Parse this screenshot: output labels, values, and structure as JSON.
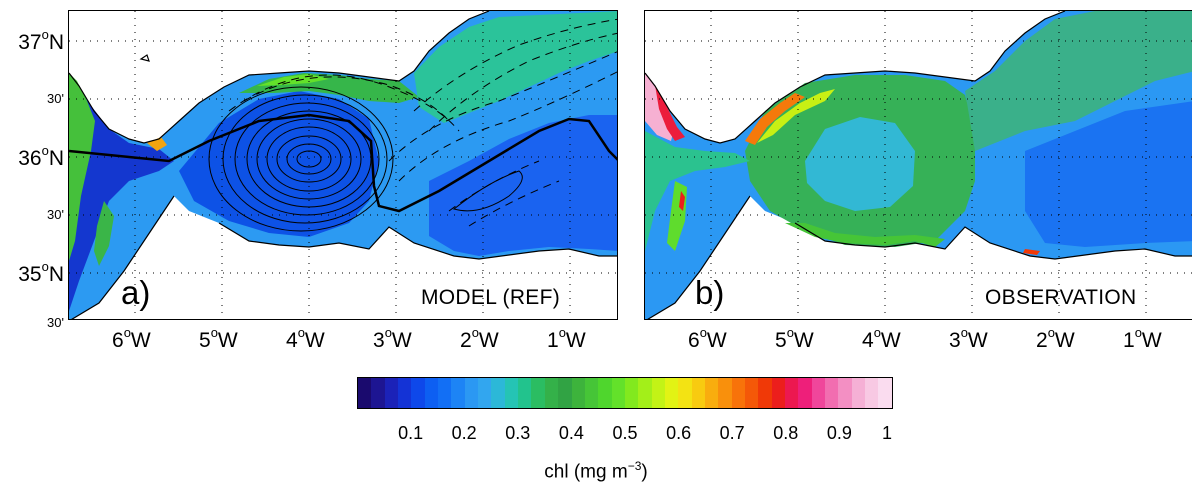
{
  "panels": {
    "a": {
      "letter": "a)",
      "title": "MODEL (REF)"
    },
    "b": {
      "letter": "b)",
      "title": "OBSERVATION"
    }
  },
  "lon_labels": [
    {
      "deg": "6",
      "suffix": "W"
    },
    {
      "deg": "5",
      "suffix": "W"
    },
    {
      "deg": "4",
      "suffix": "W"
    },
    {
      "deg": "3",
      "suffix": "W"
    },
    {
      "deg": "2",
      "suffix": "W"
    },
    {
      "deg": "1",
      "suffix": "W"
    }
  ],
  "lat_labels": [
    {
      "text": "37",
      "sup": "o",
      "suffix": "N",
      "major": true
    },
    {
      "text": "30'",
      "major": false
    },
    {
      "text": "36",
      "sup": "o",
      "suffix": "N",
      "major": true
    },
    {
      "text": "30'",
      "major": false
    },
    {
      "text": "35",
      "sup": "o",
      "suffix": "N",
      "major": true
    },
    {
      "text": "30'",
      "major": false
    }
  ],
  "colorbar": {
    "ticks": [
      "0.1",
      "0.2",
      "0.3",
      "0.4",
      "0.5",
      "0.6",
      "0.7",
      "0.8",
      "0.9",
      "1"
    ],
    "label_main": "chl (mg m",
    "label_sup": "−3",
    "label_end": ")",
    "colors": [
      "#1a0a6e",
      "#1d1592",
      "#1b22b8",
      "#1433d6",
      "#0e48ea",
      "#0d5ff2",
      "#126ff5",
      "#1d84f5",
      "#2b98f3",
      "#32a6ef",
      "#2cb8d8",
      "#25c4b4",
      "#22c38d",
      "#2bbd62",
      "#34b149",
      "#31a344",
      "#3db33c",
      "#46c537",
      "#4fd62d",
      "#63e12a",
      "#82e91e",
      "#a3ef19",
      "#c3f316",
      "#e2f314",
      "#f3e313",
      "#f8cb10",
      "#f9ad0e",
      "#f9900c",
      "#f8730a",
      "#f45808",
      "#f03907",
      "#ec1e1c",
      "#ec1850",
      "#ee1f7a",
      "#f0469b",
      "#f26db0",
      "#f38fc3",
      "#f5b0d5",
      "#f8c9e3",
      "#fadcef"
    ]
  }
}
